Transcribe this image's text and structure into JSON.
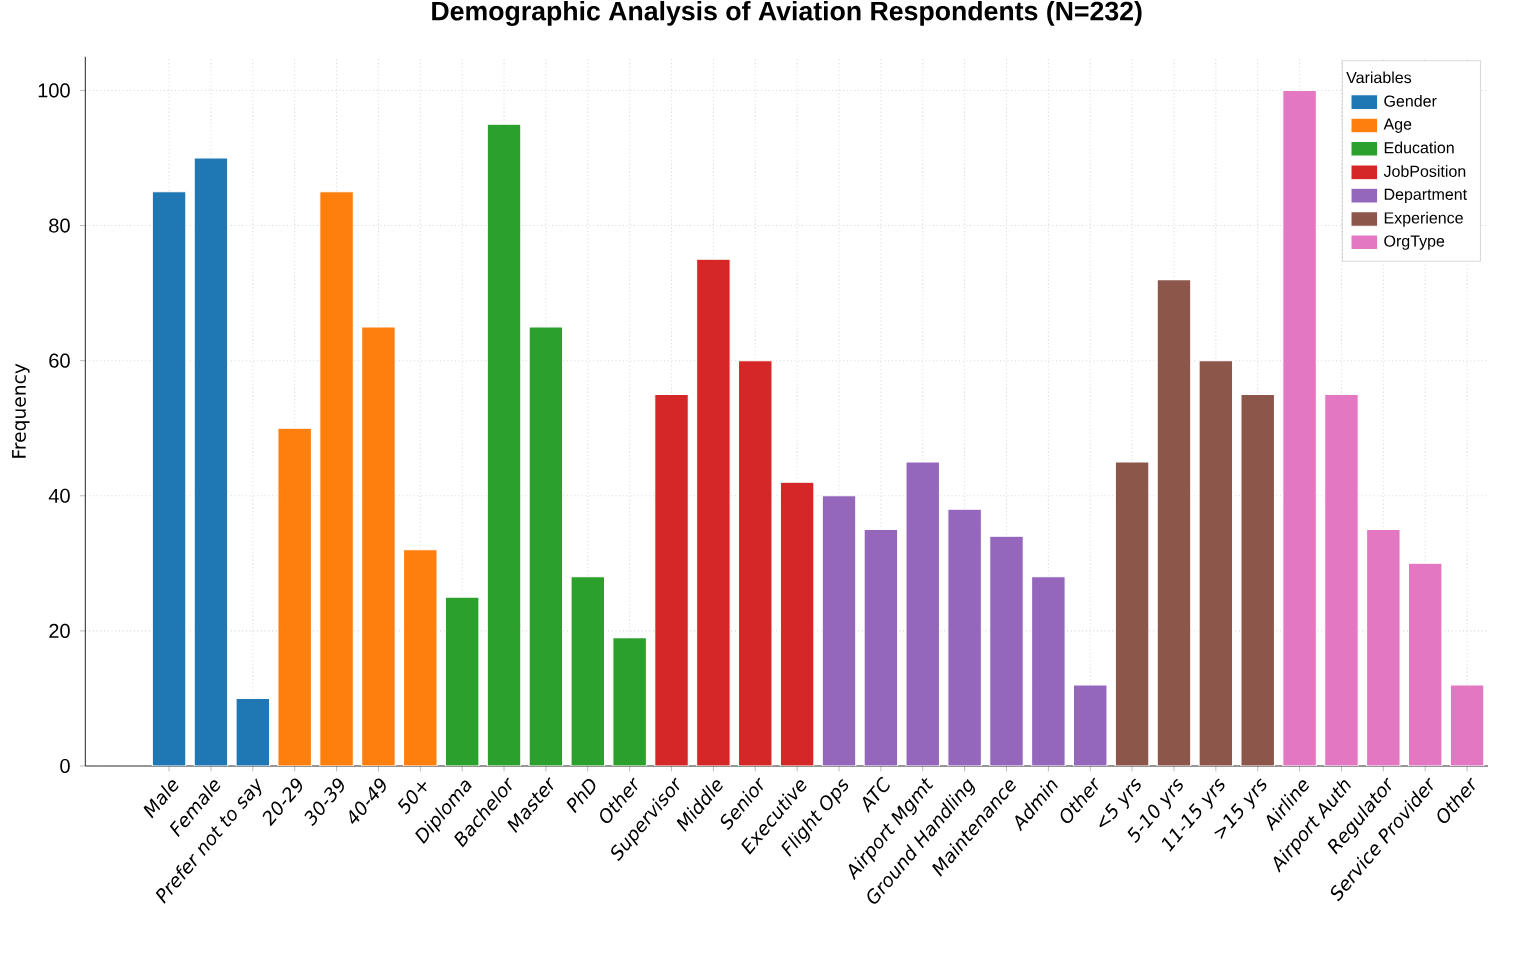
{
  "chart_data": {
    "type": "bar",
    "title": "Demographic Analysis of Aviation Respondents (N=232)",
    "ylabel": "Frequency",
    "legend_title": "Variables",
    "legend": "top right",
    "grid": true,
    "categories": [
      "Male",
      "Female",
      "Prefer not to say",
      "20-29",
      "30-39",
      "40-49",
      "50+",
      "Diploma",
      "Bachelor",
      "Master",
      "PhD",
      "Other",
      "Supervisor",
      "Middle",
      "Senior",
      "Executive",
      "Flight Ops",
      "ATC",
      "Airport Mgmt",
      "Ground Handling",
      "Maintenance",
      "Admin",
      "Other",
      "<5 yrs",
      "5-10 yrs",
      "11-15 yrs",
      ">15 yrs",
      "Airline",
      "Airport Auth",
      "Regulator",
      "Service Provider",
      "Other"
    ],
    "ylim": [
      0,
      105
    ],
    "yticks": [
      0,
      20,
      40,
      60,
      80,
      100
    ],
    "series": [
      {
        "name": "Gender",
        "color": "#1f77b4",
        "values": [
          85,
          90,
          10,
          null,
          null,
          null,
          null,
          null,
          null,
          null,
          null,
          null,
          null,
          null,
          null,
          null,
          null,
          null,
          null,
          null,
          null,
          null,
          null,
          null,
          null,
          null,
          null,
          null,
          null,
          null,
          null,
          null
        ]
      },
      {
        "name": "Age",
        "color": "#ff7f0e",
        "values": [
          null,
          null,
          null,
          50,
          85,
          65,
          32,
          null,
          null,
          null,
          null,
          null,
          null,
          null,
          null,
          null,
          null,
          null,
          null,
          null,
          null,
          null,
          null,
          null,
          null,
          null,
          null,
          null,
          null,
          null,
          null,
          null
        ]
      },
      {
        "name": "Education",
        "color": "#2ca02c",
        "values": [
          null,
          null,
          null,
          null,
          null,
          null,
          null,
          25,
          95,
          65,
          28,
          19,
          null,
          null,
          null,
          null,
          null,
          null,
          null,
          null,
          null,
          null,
          null,
          null,
          null,
          null,
          null,
          null,
          null,
          null,
          null,
          null
        ]
      },
      {
        "name": "JobPosition",
        "color": "#d62728",
        "values": [
          null,
          null,
          null,
          null,
          null,
          null,
          null,
          null,
          null,
          null,
          null,
          null,
          55,
          75,
          60,
          42,
          null,
          null,
          null,
          null,
          null,
          null,
          null,
          null,
          null,
          null,
          null,
          null,
          null,
          null,
          null,
          null
        ]
      },
      {
        "name": "Department",
        "color": "#9467bd",
        "values": [
          null,
          null,
          null,
          null,
          null,
          null,
          null,
          null,
          null,
          null,
          null,
          null,
          null,
          null,
          null,
          null,
          40,
          35,
          45,
          38,
          34,
          28,
          12,
          null,
          null,
          null,
          null,
          null,
          null,
          null,
          null,
          null
        ]
      },
      {
        "name": "Experience",
        "color": "#8c564b",
        "values": [
          null,
          null,
          null,
          null,
          null,
          null,
          null,
          null,
          null,
          null,
          null,
          null,
          null,
          null,
          null,
          null,
          null,
          null,
          null,
          null,
          null,
          null,
          null,
          45,
          72,
          60,
          55,
          null,
          null,
          null,
          null,
          null
        ]
      },
      {
        "name": "OrgType",
        "color": "#e377c2",
        "values": [
          null,
          null,
          null,
          null,
          null,
          null,
          null,
          null,
          null,
          null,
          null,
          null,
          null,
          null,
          null,
          null,
          null,
          null,
          null,
          null,
          null,
          null,
          null,
          null,
          null,
          null,
          null,
          100,
          55,
          35,
          30,
          12
        ]
      }
    ]
  }
}
